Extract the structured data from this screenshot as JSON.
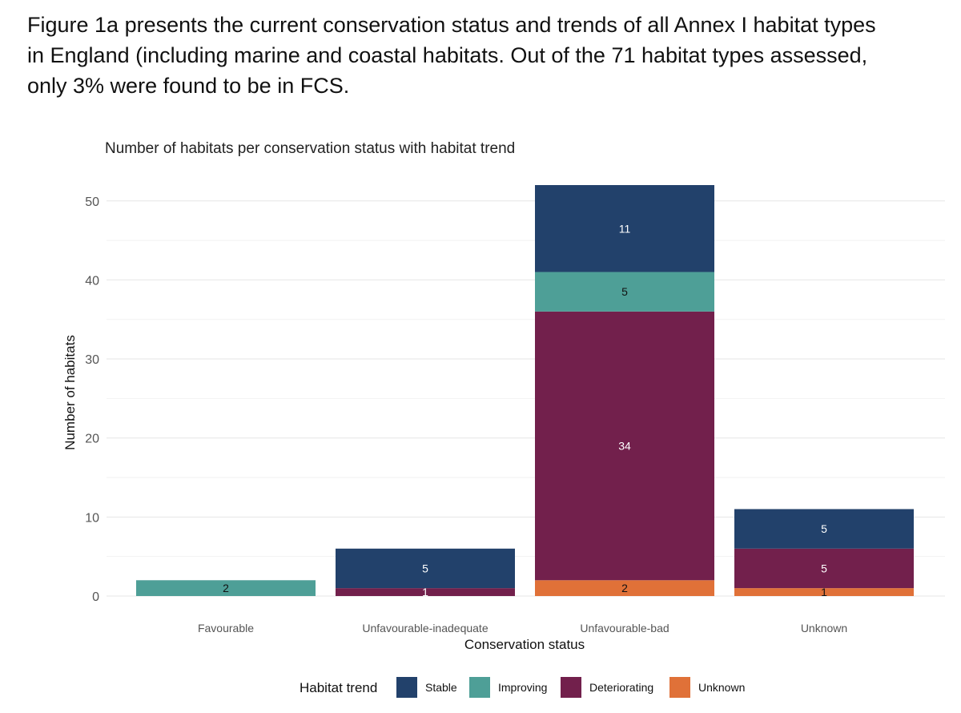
{
  "intro": {
    "line1": "Figure 1a presents the current conservation status and trends of all Annex I habitat types",
    "line2": "in England (including marine and coastal habitats. Out of the 71 habitat types assessed,",
    "line3": "only 3% were found to be in FCS."
  },
  "chart_data": {
    "type": "bar",
    "stacked": true,
    "title": "Number of habitats per conservation status with habitat trend",
    "xlabel": "Conservation status",
    "ylabel": "Number of habitats",
    "ylim": [
      0,
      52
    ],
    "yticks": [
      0,
      10,
      20,
      30,
      40,
      50
    ],
    "grid": true,
    "legend_position": "bottom",
    "legend_title": "Habitat trend",
    "categories": [
      "Favourable",
      "Unfavourable-inadequate",
      "Unfavourable-bad",
      "Unknown"
    ],
    "series": [
      {
        "name": "Unknown",
        "color": "#E07138",
        "label_color": "#111111",
        "values": [
          0,
          0,
          2,
          1
        ]
      },
      {
        "name": "Deteriorating",
        "color": "#72204C",
        "label_color": "#ffffff",
        "values": [
          0,
          1,
          34,
          5
        ]
      },
      {
        "name": "Improving",
        "color": "#4E9F97",
        "label_color": "#111111",
        "values": [
          2,
          0,
          5,
          0
        ]
      },
      {
        "name": "Stable",
        "color": "#22416B",
        "label_color": "#ffffff",
        "values": [
          0,
          5,
          11,
          5
        ]
      }
    ],
    "legend_order": [
      "Stable",
      "Improving",
      "Deteriorating",
      "Unknown"
    ]
  }
}
